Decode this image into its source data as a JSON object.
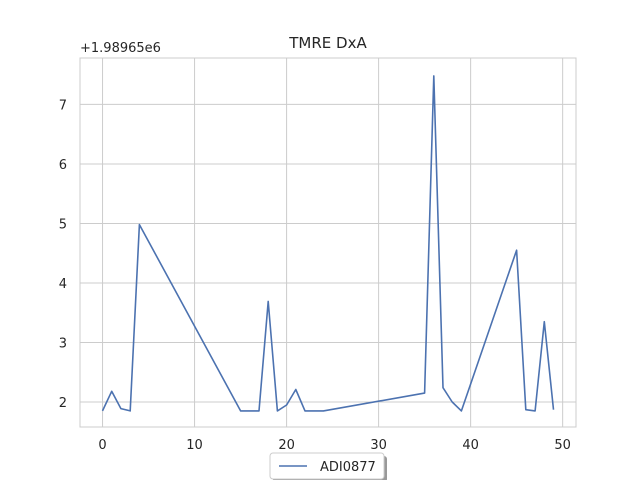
{
  "chart_data": {
    "type": "line",
    "title": "TMRE DxA",
    "xlabel": "",
    "ylabel": "",
    "y_offset_label": "+1.98965e6",
    "xlim": [
      -2.45,
      51.45
    ],
    "ylim": [
      1.58,
      7.78
    ],
    "x_ticks": [
      0,
      10,
      20,
      30,
      40,
      50
    ],
    "y_ticks": [
      2,
      3,
      4,
      5,
      6,
      7
    ],
    "grid": true,
    "legend_position": "bottom-center",
    "series": [
      {
        "name": "ADI0877",
        "color": "#4c72b0",
        "x": [
          0,
          1,
          2,
          3,
          4,
          15,
          16,
          17,
          18,
          19,
          20,
          21,
          22,
          23,
          24,
          35,
          36,
          37,
          38,
          39,
          45,
          46,
          47,
          48,
          49
        ],
        "y": [
          1.85,
          2.18,
          1.89,
          1.85,
          4.98,
          1.85,
          1.85,
          1.85,
          3.69,
          1.85,
          1.95,
          2.21,
          1.85,
          1.85,
          1.85,
          2.15,
          7.48,
          2.24,
          2.0,
          1.85,
          4.55,
          1.87,
          1.85,
          3.35,
          1.87
        ]
      }
    ]
  }
}
